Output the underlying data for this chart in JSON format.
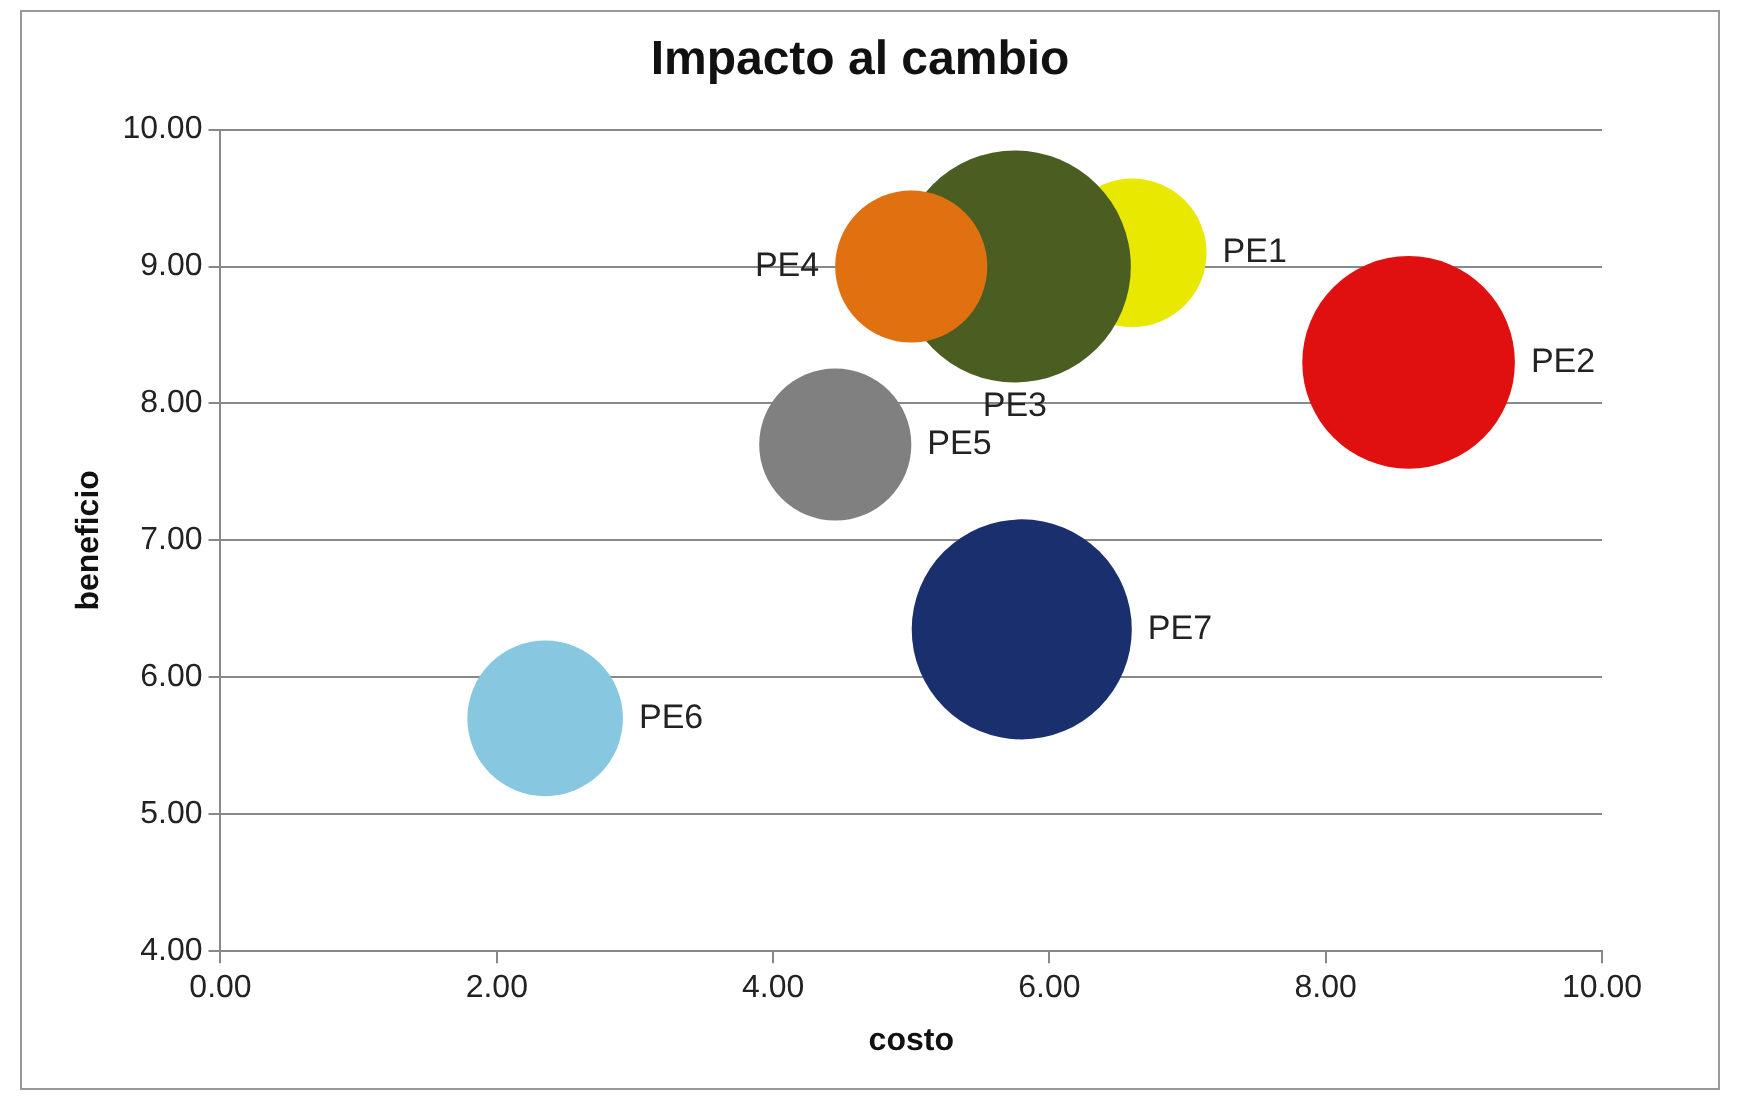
{
  "chart_data": {
    "type": "bubble",
    "title": "Impacto al cambio",
    "xlabel": "costo",
    "ylabel": "beneficio",
    "xlim": [
      0,
      10
    ],
    "xticks": [
      {
        "value": 0,
        "label": "0.00"
      },
      {
        "value": 2,
        "label": "2.00"
      },
      {
        "value": 4,
        "label": "4.00"
      },
      {
        "value": 6,
        "label": "6.00"
      },
      {
        "value": 8,
        "label": "8.00"
      },
      {
        "value": 10,
        "label": "10.00"
      }
    ],
    "ylim": [
      4,
      10
    ],
    "yticks": [
      {
        "value": 4,
        "label": "4.00"
      },
      {
        "value": 5,
        "label": "5.00"
      },
      {
        "value": 6,
        "label": "6.00"
      },
      {
        "value": 7,
        "label": "7.00"
      },
      {
        "value": 8,
        "label": "8.00"
      },
      {
        "value": 9,
        "label": "9.00"
      },
      {
        "value": 10,
        "label": "10.00"
      }
    ],
    "grid": "y",
    "legend": false,
    "series": [
      {
        "name": "PE1",
        "color": "#e8e800",
        "x": [
          6.6
        ],
        "values": [
          9.1
        ],
        "sizes": [
          0.41
        ]
      },
      {
        "name": "PE2",
        "color": "#e01010",
        "x": [
          8.6
        ],
        "values": [
          8.3
        ],
        "sizes": [
          0.84
        ]
      },
      {
        "name": "PE3",
        "color": "#4b5e22",
        "x": [
          5.75
        ],
        "values": [
          9.0
        ],
        "sizes": [
          1
        ]
      },
      {
        "name": "PE4",
        "color": "#e07010",
        "x": [
          5.0
        ],
        "values": [
          9.0
        ],
        "sizes": [
          0.43
        ]
      },
      {
        "name": "PE5",
        "color": "#808080",
        "x": [
          4.45
        ],
        "values": [
          7.7
        ],
        "sizes": [
          0.43
        ]
      },
      {
        "name": "PE6",
        "color": "#87c8e0",
        "x": [
          2.35
        ],
        "values": [
          5.7
        ],
        "sizes": [
          0.45
        ]
      },
      {
        "name": "PE7",
        "color": "#1a2f6e",
        "x": [
          5.8
        ],
        "values": [
          6.35
        ],
        "sizes": [
          0.9
        ]
      }
    ]
  }
}
